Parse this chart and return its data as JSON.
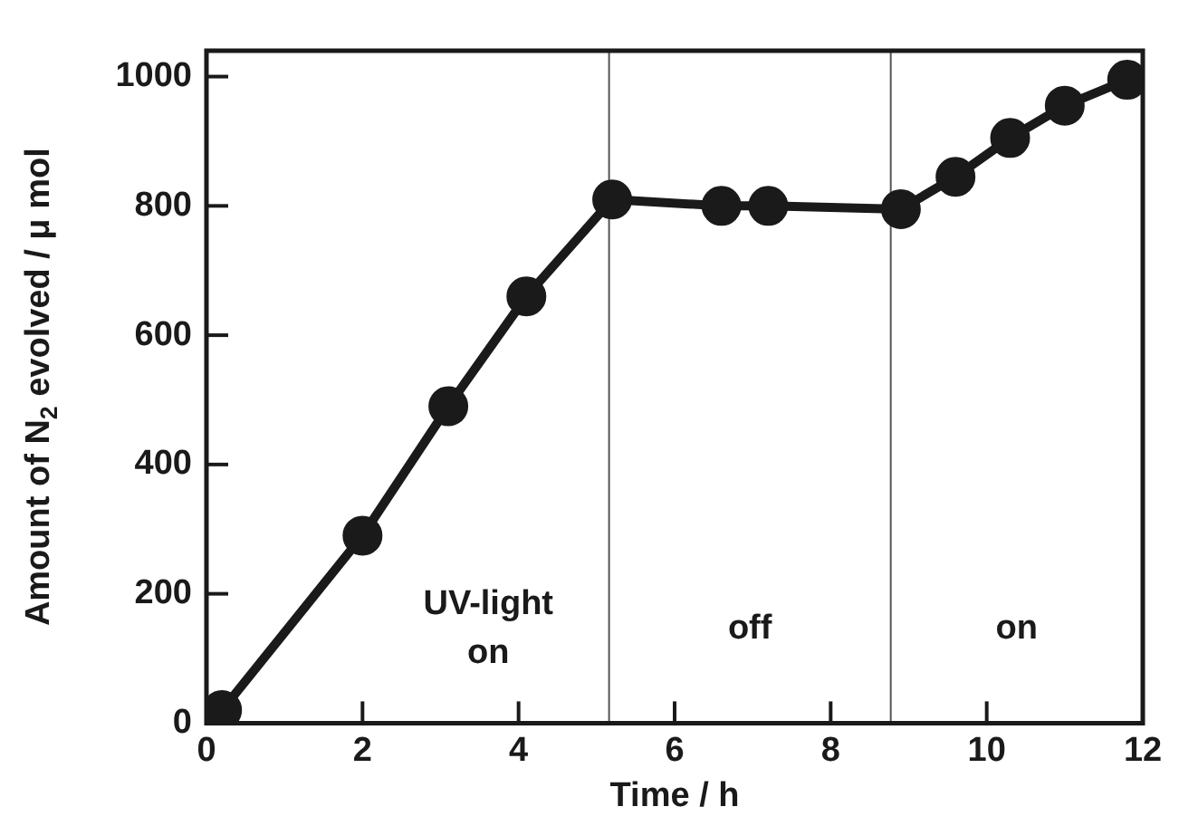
{
  "chart_data": {
    "type": "line",
    "xlabel": "Time / h",
    "ylabel": "Amount of N$_{2}$ evolved / μ mol",
    "x": [
      0,
      0.2,
      2,
      3.1,
      4.1,
      5.2,
      6.6,
      7.2,
      8.9,
      9.6,
      10.3,
      11.0,
      11.8
    ],
    "series": [
      {
        "color": "#1a1a1a",
        "values": [
          0,
          20,
          290,
          490,
          660,
          810,
          800,
          800,
          795,
          845,
          905,
          955,
          995
        ]
      }
    ],
    "xlim": [
      0,
      12
    ],
    "xticks": [
      0,
      2,
      4,
      6,
      8,
      10,
      12
    ],
    "ylim": [
      0,
      1040
    ],
    "yticks": [
      0,
      200,
      400,
      600,
      800,
      1000
    ],
    "ref_lines": [
      {
        "axis": "x",
        "value": 5.16,
        "color": "#555555",
        "line_style": "solid"
      },
      {
        "axis": "x",
        "value": 8.77,
        "color": "#555555",
        "line_style": "solid"
      }
    ],
    "annotations": [
      "UV-light on",
      "off",
      "on"
    ],
    "grid": false,
    "legend": false,
    "marker": "circle",
    "line_style": "solid"
  }
}
